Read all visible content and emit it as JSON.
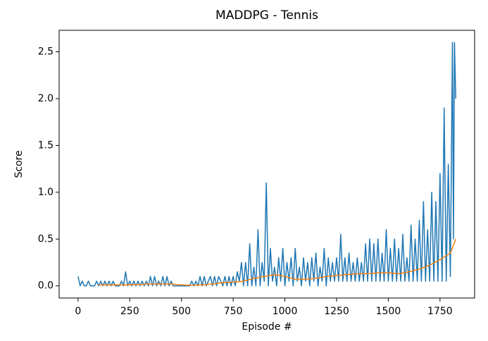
{
  "chart_data": {
    "type": "line",
    "title": "MADDPG - Tennis",
    "xlabel": "Episode #",
    "ylabel": "Score",
    "xlim": [
      -91.3,
      1917.3
    ],
    "ylim": [
      -0.13,
      2.73
    ],
    "xticks": [
      0,
      250,
      500,
      750,
      1000,
      1250,
      1500,
      1750
    ],
    "yticks": [
      {
        "value": 0,
        "label": "0.0"
      },
      {
        "value": 0.5,
        "label": "0.5"
      },
      {
        "value": 1,
        "label": "1.0"
      },
      {
        "value": 1.5,
        "label": "1.5"
      },
      {
        "value": 2,
        "label": "2.0"
      },
      {
        "value": 2.5,
        "label": "2.5"
      }
    ],
    "grid": false,
    "series": [
      {
        "color": "#1f77b4",
        "x": [
          0,
          10,
          20,
          30,
          40,
          50,
          60,
          70,
          80,
          90,
          100,
          110,
          120,
          130,
          140,
          150,
          160,
          170,
          180,
          190,
          200,
          210,
          220,
          230,
          240,
          250,
          260,
          270,
          280,
          290,
          300,
          310,
          320,
          330,
          340,
          350,
          360,
          370,
          380,
          390,
          400,
          410,
          420,
          430,
          440,
          450,
          460,
          470,
          480,
          490,
          500,
          510,
          520,
          530,
          540,
          550,
          560,
          570,
          580,
          590,
          600,
          610,
          620,
          630,
          640,
          650,
          660,
          670,
          680,
          690,
          700,
          710,
          720,
          730,
          740,
          750,
          760,
          770,
          780,
          790,
          800,
          810,
          820,
          830,
          840,
          850,
          860,
          870,
          880,
          890,
          900,
          910,
          920,
          930,
          940,
          950,
          960,
          970,
          980,
          990,
          1000,
          1010,
          1020,
          1030,
          1040,
          1050,
          1060,
          1070,
          1080,
          1090,
          1100,
          1110,
          1120,
          1130,
          1140,
          1150,
          1160,
          1170,
          1180,
          1190,
          1200,
          1210,
          1220,
          1230,
          1240,
          1250,
          1260,
          1270,
          1280,
          1290,
          1300,
          1310,
          1320,
          1330,
          1340,
          1350,
          1360,
          1370,
          1380,
          1390,
          1400,
          1410,
          1420,
          1430,
          1440,
          1450,
          1460,
          1470,
          1480,
          1490,
          1500,
          1510,
          1520,
          1530,
          1540,
          1550,
          1560,
          1570,
          1580,
          1590,
          1600,
          1610,
          1620,
          1630,
          1640,
          1650,
          1660,
          1670,
          1680,
          1690,
          1700,
          1710,
          1720,
          1730,
          1740,
          1750,
          1760,
          1770,
          1780,
          1790,
          1800,
          1810,
          1815,
          1820,
          1826
        ],
        "values": [
          0.1,
          0,
          0.05,
          0,
          0,
          0.05,
          0,
          0,
          0,
          0.05,
          0,
          0.05,
          0,
          0.05,
          0,
          0.05,
          0,
          0.05,
          0,
          0,
          0,
          0.05,
          0,
          0.15,
          0,
          0.05,
          0,
          0.05,
          0,
          0.05,
          0,
          0.05,
          0,
          0.05,
          0,
          0.1,
          0,
          0.1,
          0,
          0.05,
          0,
          0.1,
          0,
          0.1,
          0,
          0.05,
          0,
          0,
          0,
          0,
          0,
          0,
          0,
          0,
          0,
          0.05,
          0,
          0.05,
          0,
          0.1,
          0,
          0.1,
          0,
          0.05,
          0.1,
          0,
          0.1,
          0,
          0.1,
          0.05,
          0,
          0.1,
          0,
          0.1,
          0,
          0.1,
          0,
          0.15,
          0.05,
          0.25,
          0,
          0.25,
          0,
          0.45,
          0,
          0.2,
          0,
          0.6,
          0,
          0.25,
          0.05,
          1.1,
          0,
          0.4,
          0.05,
          0.2,
          0,
          0.3,
          0.05,
          0.4,
          0,
          0.25,
          0.05,
          0.3,
          0,
          0.4,
          0.05,
          0.2,
          0,
          0.3,
          0.05,
          0.25,
          0,
          0.3,
          0.05,
          0.35,
          0,
          0.2,
          0.05,
          0.4,
          0,
          0.3,
          0.05,
          0.25,
          0.05,
          0.3,
          0.05,
          0.55,
          0.05,
          0.3,
          0.05,
          0.35,
          0.05,
          0.25,
          0.05,
          0.3,
          0.05,
          0.25,
          0.05,
          0.45,
          0.05,
          0.5,
          0.05,
          0.45,
          0.05,
          0.5,
          0.05,
          0.35,
          0.05,
          0.6,
          0.05,
          0.4,
          0.05,
          0.5,
          0.05,
          0.4,
          0.05,
          0.55,
          0.05,
          0.3,
          0.05,
          0.65,
          0.05,
          0.5,
          0.05,
          0.7,
          0.05,
          0.9,
          0.05,
          0.6,
          0.05,
          1.0,
          0.05,
          0.9,
          0.05,
          1.2,
          0.05,
          1.9,
          0.05,
          1.3,
          0.1,
          2.6,
          0.5,
          2.6,
          2.0
        ]
      },
      {
        "color": "#ff7f0e",
        "x": [
          100,
          150,
          200,
          250,
          300,
          350,
          400,
          450,
          500,
          550,
          600,
          650,
          700,
          750,
          800,
          850,
          900,
          950,
          1000,
          1050,
          1100,
          1150,
          1200,
          1250,
          1300,
          1350,
          1400,
          1450,
          1500,
          1550,
          1600,
          1650,
          1700,
          1750,
          1800,
          1826
        ],
        "values": [
          0.01,
          0.01,
          0.01,
          0.01,
          0.015,
          0.02,
          0.02,
          0.02,
          0.01,
          0.005,
          0.01,
          0.02,
          0.035,
          0.04,
          0.05,
          0.08,
          0.1,
          0.12,
          0.1,
          0.07,
          0.07,
          0.08,
          0.1,
          0.11,
          0.12,
          0.13,
          0.13,
          0.14,
          0.14,
          0.13,
          0.15,
          0.18,
          0.22,
          0.28,
          0.35,
          0.5
        ]
      }
    ]
  }
}
